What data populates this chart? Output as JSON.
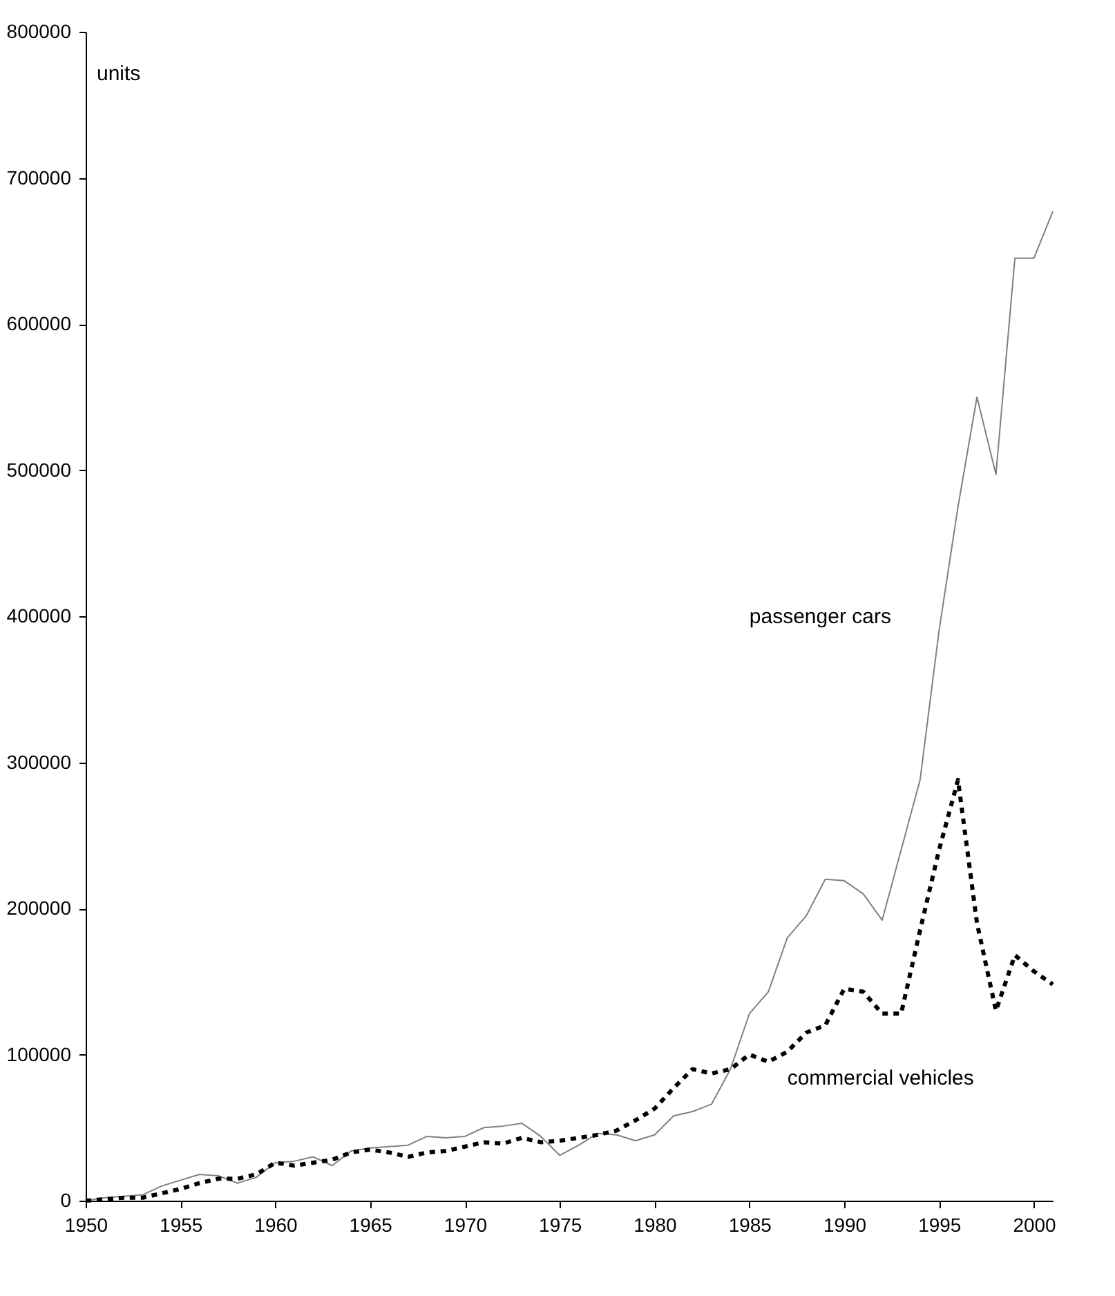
{
  "chart_data": {
    "type": "line",
    "ylabel": "units",
    "x": [
      1950,
      1951,
      1952,
      1953,
      1954,
      1955,
      1956,
      1957,
      1958,
      1959,
      1960,
      1961,
      1962,
      1963,
      1964,
      1965,
      1966,
      1967,
      1968,
      1969,
      1970,
      1971,
      1972,
      1973,
      1974,
      1975,
      1976,
      1977,
      1978,
      1979,
      1980,
      1981,
      1982,
      1983,
      1984,
      1985,
      1986,
      1987,
      1988,
      1989,
      1990,
      1991,
      1992,
      1993,
      1994,
      1995,
      1996,
      1997,
      1998,
      1999,
      2000,
      2001
    ],
    "series": [
      {
        "name": "passenger cars",
        "color": "#808080",
        "line_style": "solid",
        "values": [
          0,
          2000,
          3000,
          4000,
          10000,
          14000,
          18000,
          17000,
          12000,
          16000,
          26000,
          27000,
          30000,
          24000,
          34000,
          36000,
          37000,
          38000,
          44000,
          43000,
          44000,
          50000,
          51000,
          53000,
          44000,
          31000,
          38000,
          46000,
          45000,
          41000,
          45000,
          58000,
          61000,
          66000,
          90000,
          128000,
          143000,
          180000,
          195000,
          220000,
          219000,
          210000,
          192000,
          240000,
          288000,
          390000,
          475000,
          550000,
          497000,
          645000,
          645000,
          677000
        ]
      },
      {
        "name": "commercial vehicles",
        "color": "#000000",
        "line_style": "dashed",
        "values": [
          0,
          1000,
          2000,
          2000,
          5000,
          8000,
          12000,
          15000,
          15000,
          18000,
          26000,
          24000,
          26000,
          28000,
          33000,
          35000,
          33000,
          30000,
          33000,
          34000,
          37000,
          40000,
          39000,
          43000,
          40000,
          41000,
          43000,
          45000,
          48000,
          55000,
          63000,
          77000,
          90000,
          87000,
          90000,
          100000,
          95000,
          102000,
          115000,
          120000,
          145000,
          143000,
          128000,
          128000,
          185000,
          240000,
          288000,
          190000,
          130000,
          168000,
          157000,
          148000
        ]
      }
    ],
    "xlim": [
      1950,
      2001
    ],
    "xticks": [
      1950,
      1955,
      1960,
      1965,
      1970,
      1975,
      1980,
      1985,
      1990,
      1995,
      2000
    ],
    "ylim": [
      0,
      800000
    ],
    "yticks": [
      0,
      100000,
      200000,
      300000,
      400000,
      500000,
      600000,
      700000,
      800000
    ],
    "grid": false
  }
}
